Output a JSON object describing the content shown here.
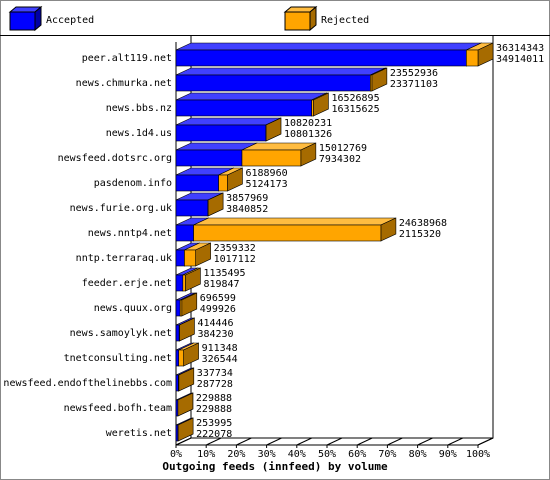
{
  "chart_data": {
    "type": "bar3d",
    "orientation": "horizontal",
    "x_label": "Outgoing feeds (innfeed) by volume",
    "categories": [
      "peer.alt119.net",
      "news.chmurka.net",
      "news.bbs.nz",
      "news.1d4.us",
      "newsfeed.dotsrc.org",
      "pasdenom.info",
      "news.furie.org.uk",
      "news.nntp4.net",
      "nntp.terraraq.uk",
      "feeder.erje.net",
      "news.quux.org",
      "news.samoylyk.net",
      "tnetconsulting.net",
      "newsfeed.endofthelinebbs.com",
      "newsfeed.bofh.team",
      "weretis.net"
    ],
    "offered": [
      36314343,
      23552936,
      16526895,
      10820231,
      15012769,
      6188960,
      3857969,
      24638968,
      2359332,
      1135495,
      696599,
      414446,
      911348,
      337734,
      229888,
      253995
    ],
    "series": [
      {
        "name": "Accepted",
        "color": "#0000ff",
        "values": [
          34914011,
          23371103,
          16315625,
          10801326,
          7934302,
          5124173,
          3840852,
          2115320,
          1017112,
          819847,
          499926,
          384230,
          326544,
          287728,
          229888,
          222078
        ]
      },
      {
        "name": "Rejected",
        "color": "#ffa500",
        "values": [
          1400332,
          181833,
          211270,
          18905,
          7078467,
          1064787,
          17117,
          22523648,
          1342220,
          315648,
          196673,
          30216,
          584804,
          50006,
          0,
          31917
        ]
      }
    ],
    "xlim": [
      0,
      36314343
    ],
    "xticks": [
      {
        "value": 0,
        "label": "0%"
      },
      {
        "value": 3631434.3,
        "label": "10%"
      },
      {
        "value": 7262868.6,
        "label": "20%"
      },
      {
        "value": 10894302.9,
        "label": "30%"
      },
      {
        "value": 14525737.2,
        "label": "40%"
      },
      {
        "value": 18157171.5,
        "label": "50%"
      },
      {
        "value": 21788605.8,
        "label": "60%"
      },
      {
        "value": 25420040.1,
        "label": "70%"
      },
      {
        "value": 29051474.4,
        "label": "80%"
      },
      {
        "value": 32682908.7,
        "label": "90%"
      },
      {
        "value": 36314343,
        "label": "100%"
      }
    ]
  }
}
